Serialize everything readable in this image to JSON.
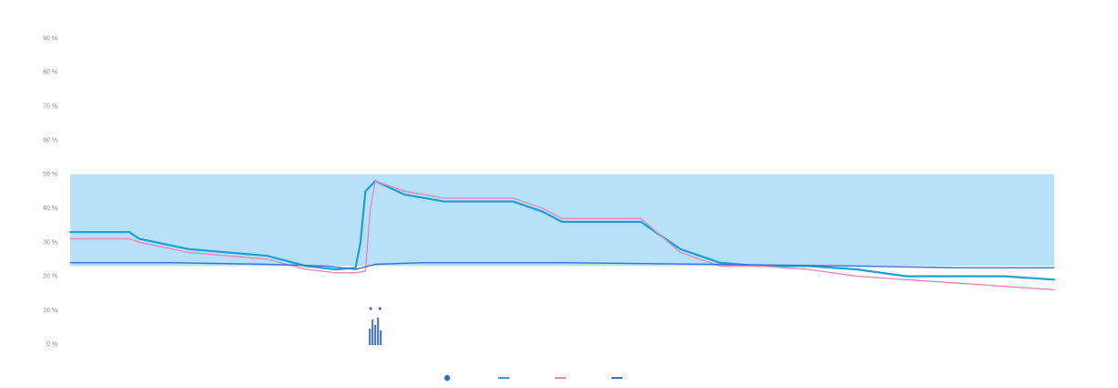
{
  "chart_data": {
    "type": "line",
    "title": "",
    "xlabel": "",
    "y_left": {
      "label": "",
      "ticks": [
        "0 %",
        "10 %",
        "20 %",
        "30 %",
        "40 %",
        "50 %",
        "60 %",
        "70 %",
        "80 %",
        "90 %"
      ],
      "range": [
        0,
        90
      ]
    },
    "y_right": {
      "label": "",
      "ticks": [
        "",
        "",
        "",
        "",
        "",
        "",
        "",
        "",
        "",
        ""
      ]
    },
    "x_ticks": [
      "",
      "",
      "",
      "",
      "",
      "",
      "",
      ""
    ],
    "band": {
      "from": 23,
      "to": 50,
      "color": "#a9dcf8"
    },
    "series": [
      {
        "name": "",
        "color": "#1c9fd8",
        "points": [
          [
            0,
            33
          ],
          [
            6,
            33
          ],
          [
            6.5,
            32
          ],
          [
            7,
            31
          ],
          [
            12,
            28
          ],
          [
            20,
            26
          ],
          [
            24,
            23
          ],
          [
            27,
            22
          ],
          [
            29,
            22.5
          ],
          [
            29.5,
            30
          ],
          [
            30,
            45
          ],
          [
            31,
            48
          ],
          [
            34,
            44
          ],
          [
            38,
            42
          ],
          [
            45,
            42
          ],
          [
            48,
            39
          ],
          [
            50,
            36
          ],
          [
            58,
            36
          ],
          [
            62,
            28
          ],
          [
            66,
            24
          ],
          [
            70,
            23
          ],
          [
            75,
            23
          ],
          [
            80,
            22
          ],
          [
            85,
            20
          ],
          [
            90,
            20
          ],
          [
            95,
            20
          ],
          [
            100,
            19
          ]
        ]
      },
      {
        "name": "",
        "color": "#e58ab8",
        "points": [
          [
            0,
            31
          ],
          [
            6,
            31
          ],
          [
            7,
            30
          ],
          [
            12,
            27
          ],
          [
            20,
            25
          ],
          [
            24,
            22
          ],
          [
            27,
            21
          ],
          [
            29,
            21
          ],
          [
            30,
            21.5
          ],
          [
            30.5,
            40
          ],
          [
            31,
            48
          ],
          [
            34,
            45
          ],
          [
            38,
            43
          ],
          [
            45,
            43
          ],
          [
            48,
            40
          ],
          [
            50,
            37
          ],
          [
            58,
            37
          ],
          [
            62,
            27
          ],
          [
            66,
            23
          ],
          [
            70,
            23
          ],
          [
            75,
            22
          ],
          [
            80,
            20
          ],
          [
            85,
            19
          ],
          [
            90,
            18
          ],
          [
            95,
            17
          ],
          [
            100,
            16
          ]
        ]
      },
      {
        "name": "",
        "color": "#3f6fcf",
        "points": [
          [
            0,
            24
          ],
          [
            10,
            24
          ],
          [
            20,
            23.5
          ],
          [
            26,
            23
          ],
          [
            29,
            22
          ],
          [
            31,
            23.5
          ],
          [
            36,
            24
          ],
          [
            50,
            24
          ],
          [
            65,
            23.5
          ],
          [
            80,
            23
          ],
          [
            90,
            22.5
          ],
          [
            100,
            22.5
          ]
        ]
      }
    ],
    "event_marker_x": 31,
    "legend": {
      "position": "bottom-center",
      "entries": [
        "",
        "",
        "",
        ""
      ]
    },
    "grid": false
  }
}
